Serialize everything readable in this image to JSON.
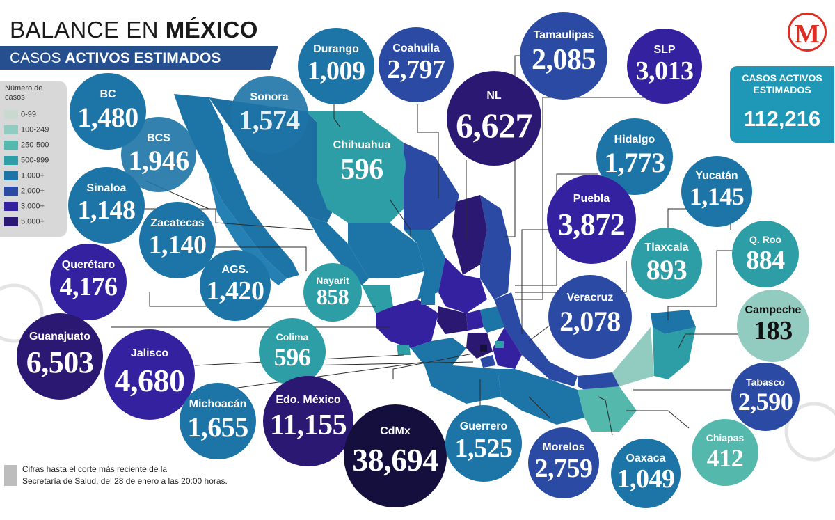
{
  "header": {
    "title_normal": "BALANCE EN ",
    "title_bold": "MÉXICO",
    "subtitle_normal": "CASOS ",
    "subtitle_bold": "ACTIVOS ESTIMADOS"
  },
  "legend": {
    "title": "Número de casos",
    "items": [
      {
        "label": "0-99",
        "color": "#c9d9cf"
      },
      {
        "label": "100-249",
        "color": "#92cbbf"
      },
      {
        "label": "250-500",
        "color": "#54b8ad"
      },
      {
        "label": "500-999",
        "color": "#2d9ea5"
      },
      {
        "label": "1,000+",
        "color": "#1d74a6"
      },
      {
        "label": "2,000+",
        "color": "#2b4aa3"
      },
      {
        "label": "3,000+",
        "color": "#3421a0"
      },
      {
        "label": "5,000+",
        "color": "#2a1872"
      }
    ]
  },
  "total": {
    "label": "CASOS ACTIVOS\nESTIMADOS",
    "value": "112,216",
    "color": "#1f98b7"
  },
  "logo": {
    "letter": "M",
    "color": "#dd2e24",
    "icon": "milenio-logo-icon"
  },
  "footnote": "Cifras hasta el corte más reciente de la\nSecretaría de Salud, del 28 de enero a las 20:00 horas.",
  "states": [
    {
      "key": "bc",
      "name": "BC",
      "value": "1,480",
      "color": "#1d74a6"
    },
    {
      "key": "sonora",
      "name": "Sonora",
      "value": "1,574",
      "color": "#1d74a6"
    },
    {
      "key": "durango",
      "name": "Durango",
      "value": "1,009",
      "color": "#1d74a6"
    },
    {
      "key": "coahuila",
      "name": "Coahuila",
      "value": "2,797",
      "color": "#2b4aa3"
    },
    {
      "key": "tamaulipas",
      "name": "Tamaulipas",
      "value": "2,085",
      "color": "#2b4aa3"
    },
    {
      "key": "slp",
      "name": "SLP",
      "value": "3,013",
      "color": "#3421a0"
    },
    {
      "key": "nl",
      "name": "NL",
      "value": "6,627",
      "color": "#2a1872"
    },
    {
      "key": "chihuahua",
      "name": "Chihuahua",
      "value": "596",
      "color": "#2d9ea5"
    },
    {
      "key": "bcs",
      "name": "BCS",
      "value": "1,946",
      "color": "#1d74a6"
    },
    {
      "key": "hidalgo",
      "name": "Hidalgo",
      "value": "1,773",
      "color": "#1d74a6"
    },
    {
      "key": "yucatan",
      "name": "Yucatán",
      "value": "1,145",
      "color": "#1d74a6"
    },
    {
      "key": "sinaloa",
      "name": "Sinaloa",
      "value": "1,148",
      "color": "#1d74a6"
    },
    {
      "key": "puebla",
      "name": "Puebla",
      "value": "3,872",
      "color": "#3421a0"
    },
    {
      "key": "zacatecas",
      "name": "Zacatecas",
      "value": "1,140",
      "color": "#1d74a6"
    },
    {
      "key": "tlaxcala",
      "name": "Tlaxcala",
      "value": "893",
      "color": "#2d9ea5"
    },
    {
      "key": "qroo",
      "name": "Q. Roo",
      "value": "884",
      "color": "#2d9ea5"
    },
    {
      "key": "queretaro",
      "name": "Querétaro",
      "value": "4,176",
      "color": "#3421a0"
    },
    {
      "key": "ags",
      "name": "AGS.",
      "value": "1,420",
      "color": "#1d74a6"
    },
    {
      "key": "nayarit",
      "name": "Nayarit",
      "value": "858",
      "color": "#2d9ea5"
    },
    {
      "key": "veracruz",
      "name": "Veracruz",
      "value": "2,078",
      "color": "#2b4aa3"
    },
    {
      "key": "campeche",
      "name": "Campeche",
      "value": "183",
      "color": "#92cbbf"
    },
    {
      "key": "guanajuato",
      "name": "Guanajuato",
      "value": "6,503",
      "color": "#2a1872"
    },
    {
      "key": "jalisco",
      "name": "Jalisco",
      "value": "4,680",
      "color": "#3421a0"
    },
    {
      "key": "colima",
      "name": "Colima",
      "value": "596",
      "color": "#2d9ea5"
    },
    {
      "key": "tabasco",
      "name": "Tabasco",
      "value": "2,590",
      "color": "#2b4aa3"
    },
    {
      "key": "michoacan",
      "name": "Michoacán",
      "value": "1,655",
      "color": "#1d74a6"
    },
    {
      "key": "edomex",
      "name": "Edo. México",
      "value": "11,155",
      "color": "#2a1872"
    },
    {
      "key": "cdmx",
      "name": "CdMx",
      "value": "38,694",
      "color": "#150f3d"
    },
    {
      "key": "guerrero",
      "name": "Guerrero",
      "value": "1,525",
      "color": "#1d74a6"
    },
    {
      "key": "morelos",
      "name": "Morelos",
      "value": "2,759",
      "color": "#2b4aa3"
    },
    {
      "key": "oaxaca",
      "name": "Oaxaca",
      "value": "1,049",
      "color": "#1d74a6"
    },
    {
      "key": "chiapas",
      "name": "Chiapas",
      "value": "412",
      "color": "#54b8ad"
    }
  ]
}
